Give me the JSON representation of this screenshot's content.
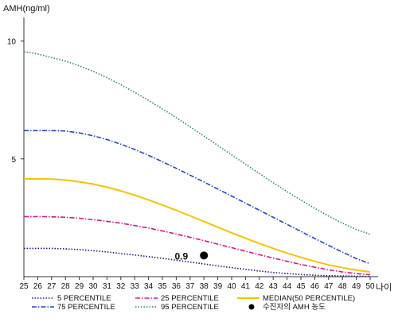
{
  "chart_data": {
    "type": "line",
    "ylabel": "AMH(ng/ml)",
    "xlabel": "나이",
    "xlim": [
      25,
      50
    ],
    "ylim": [
      0,
      11
    ],
    "yticks": [
      5,
      10
    ],
    "x": [
      25,
      26,
      27,
      28,
      29,
      30,
      31,
      32,
      33,
      34,
      35,
      36,
      37,
      38,
      39,
      40,
      41,
      42,
      43,
      44,
      45,
      46,
      47,
      48,
      49,
      50
    ],
    "grid": false,
    "legend_position": "bottom",
    "series": [
      {
        "name": "5 PERCENTILE",
        "color": "#1a1a80",
        "style": "dotted",
        "values": [
          1.2,
          1.2,
          1.2,
          1.18,
          1.15,
          1.1,
          1.05,
          0.98,
          0.92,
          0.85,
          0.78,
          0.7,
          0.62,
          0.54,
          0.46,
          0.38,
          0.31,
          0.24,
          0.18,
          0.13,
          0.09,
          0.06,
          0.04,
          0.03,
          0.02,
          0.01
        ]
      },
      {
        "name": "25 PERCENTILE",
        "color": "#d6188a",
        "style": "dashdot",
        "values": [
          2.55,
          2.55,
          2.54,
          2.52,
          2.48,
          2.42,
          2.35,
          2.27,
          2.17,
          2.06,
          1.94,
          1.81,
          1.67,
          1.53,
          1.38,
          1.23,
          1.08,
          0.93,
          0.79,
          0.65,
          0.52,
          0.4,
          0.29,
          0.2,
          0.13,
          0.08
        ]
      },
      {
        "name": "MEDIAN(50 PERCENTILE)",
        "color": "#f5c400",
        "style": "solid",
        "values": [
          4.15,
          4.15,
          4.14,
          4.1,
          4.03,
          3.93,
          3.8,
          3.64,
          3.46,
          3.26,
          3.04,
          2.82,
          2.58,
          2.34,
          2.1,
          1.86,
          1.63,
          1.41,
          1.2,
          1.0,
          0.82,
          0.65,
          0.5,
          0.38,
          0.28,
          0.2
        ]
      },
      {
        "name": "75 PERCENTILE",
        "color": "#2a44c8",
        "style": "dashdot",
        "values": [
          6.2,
          6.2,
          6.2,
          6.18,
          6.1,
          5.98,
          5.82,
          5.62,
          5.4,
          5.15,
          4.88,
          4.6,
          4.31,
          4.02,
          3.72,
          3.42,
          3.12,
          2.82,
          2.52,
          2.22,
          1.92,
          1.62,
          1.33,
          1.04,
          0.77,
          0.55
        ]
      },
      {
        "name": "95 PERCENTILE",
        "color": "#2e8a55",
        "style": "dotted",
        "values": [
          9.55,
          9.45,
          9.3,
          9.15,
          8.95,
          8.72,
          8.45,
          8.15,
          7.82,
          7.48,
          7.12,
          6.75,
          6.36,
          5.97,
          5.57,
          5.17,
          4.77,
          4.38,
          3.99,
          3.61,
          3.25,
          2.9,
          2.57,
          2.27,
          2.0,
          1.8
        ]
      }
    ],
    "marker": {
      "name": "수진자의 AMH 농도",
      "x": 38,
      "y": 0.9,
      "label": "0.9",
      "color": "#000000"
    }
  }
}
